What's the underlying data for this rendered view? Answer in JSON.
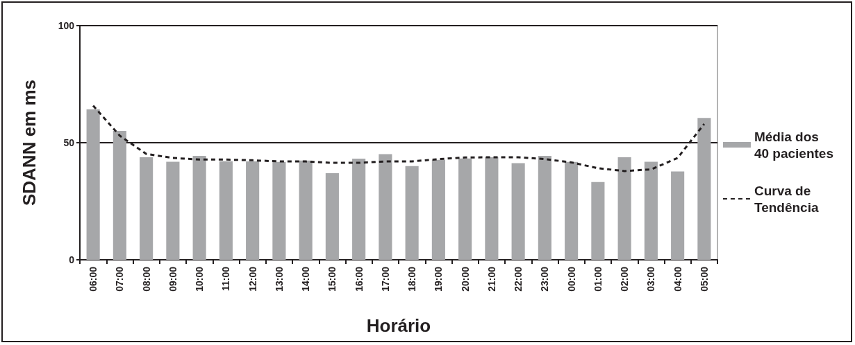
{
  "chart_data": {
    "type": "bar",
    "xlabel": "Horário",
    "ylabel": "SDANN em ms",
    "categories": [
      "06:00",
      "07:00",
      "08:00",
      "09:00",
      "10:00",
      "11:00",
      "12:00",
      "13:00",
      "14:00",
      "15:00",
      "16:00",
      "17:00",
      "18:00",
      "19:00",
      "20:00",
      "21:00",
      "22:00",
      "23:00",
      "00:00",
      "01:00",
      "02:00",
      "03:00",
      "04:00",
      "05:00"
    ],
    "series": [
      {
        "name": "Média dos\n40 pacientes",
        "color": "#a6a7a9",
        "values": [
          64.3,
          55,
          43.8,
          41.9,
          44.4,
          42.1,
          42,
          41.8,
          42.4,
          37,
          43.2,
          45.1,
          40,
          42.7,
          43.3,
          43.8,
          41.3,
          44.4,
          41.8,
          33.2,
          43.8,
          41.9,
          37.7,
          60.6
        ]
      },
      {
        "name": "Curva de\nTendência",
        "type": "line",
        "color": "#231f20",
        "line_style": "dashed",
        "marker": "none",
        "values": [
          65.8,
          53,
          45.2,
          43.5,
          42.8,
          42.8,
          42.5,
          42,
          42,
          41.4,
          41.4,
          42,
          42,
          43,
          43.7,
          43.8,
          43.8,
          43,
          41.6,
          39.1,
          37.9,
          38.6,
          43.5,
          58
        ]
      }
    ],
    "ylim": [
      0,
      100
    ],
    "yticks": [
      0,
      50,
      100
    ],
    "grid": "y",
    "legend": "right"
  }
}
